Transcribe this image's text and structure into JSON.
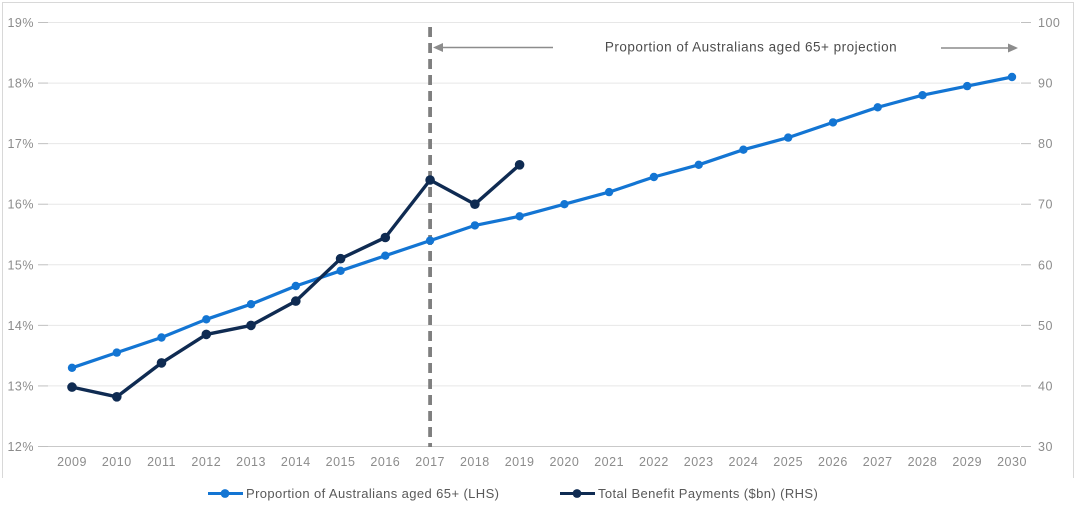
{
  "chart_data": {
    "type": "line",
    "title": "",
    "annotation": {
      "text": "Proportion of Australians aged 65+ projection",
      "divider_year": "2017",
      "arrows": [
        "left-arrow-to-divider",
        "right-arrow-to-edge"
      ]
    },
    "categories": [
      "2009",
      "2010",
      "2011",
      "2012",
      "2013",
      "2014",
      "2015",
      "2016",
      "2017",
      "2018",
      "2019",
      "2020",
      "2021",
      "2022",
      "2023",
      "2024",
      "2025",
      "2026",
      "2027",
      "2028",
      "2029",
      "2030"
    ],
    "left_axis": {
      "min": 12,
      "max": 19,
      "step": 1,
      "format": "percent",
      "tick_labels": [
        "19%",
        "18%",
        "17%",
        "16%",
        "15%",
        "14%",
        "13%",
        "12%"
      ]
    },
    "right_axis": {
      "min": 30,
      "max": 100,
      "step": 10,
      "tick_labels": [
        "100",
        "90",
        "80",
        "70",
        "60",
        "50",
        "40",
        "30"
      ]
    },
    "grid": true,
    "legend_position": "bottom",
    "series": [
      {
        "name": "Proportion of Australians aged 65+ (LHS)",
        "axis": "left",
        "color": "#1375d3",
        "values": [
          13.3,
          13.55,
          13.8,
          14.1,
          14.35,
          14.65,
          14.9,
          15.15,
          15.4,
          15.65,
          15.8,
          16.0,
          16.2,
          16.45,
          16.65,
          16.9,
          17.1,
          17.35,
          17.6,
          17.8,
          17.95,
          18.1
        ]
      },
      {
        "name": "Total Benefit Payments ($bn) (RHS)",
        "axis": "right",
        "color": "#0f2b52",
        "values": [
          39.8,
          38.2,
          43.8,
          48.5,
          50,
          54,
          61,
          64.5,
          74,
          70,
          76.5,
          null,
          null,
          null,
          null,
          null,
          null,
          null,
          null,
          null,
          null,
          null
        ]
      }
    ],
    "colors": {
      "grid": "#e7e7e7",
      "baseline": "#c9c9c9",
      "tick": "#c0c0c0",
      "axis_labels": "#8c8c8c",
      "annotation_text": "#4d4d4d",
      "divider": "#7f7f7f",
      "arrow": "#8c8c8c",
      "legend_text": "#595959",
      "frame_border": "#d8d8d8"
    }
  }
}
